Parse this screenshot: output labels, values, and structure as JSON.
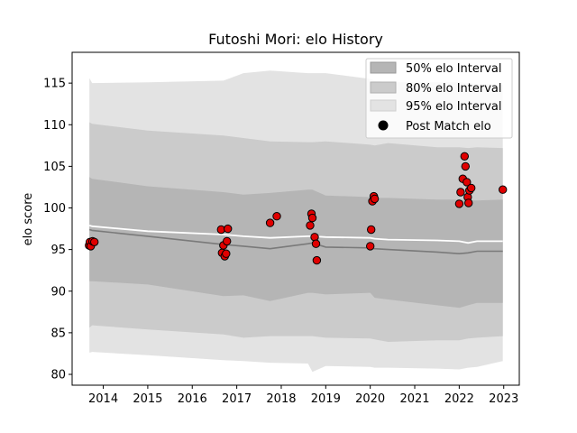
{
  "chart_data": {
    "type": "line",
    "title": "Futoshi Mori: elo History",
    "xlabel": "",
    "ylabel": "elo score",
    "xlim": [
      2013.3,
      2023.35
    ],
    "ylim": [
      78.7,
      118.7
    ],
    "x_ticks": [
      2014,
      2015,
      2016,
      2017,
      2018,
      2019,
      2020,
      2021,
      2022,
      2023
    ],
    "y_ticks": [
      80,
      85,
      90,
      95,
      100,
      105,
      110,
      115
    ],
    "grid": false,
    "legend_placement": "top-right",
    "legend": [
      {
        "label": "50% elo Interval",
        "color": "#b5b5b5"
      },
      {
        "label": "80% elo Interval",
        "color": "#cbcbcb"
      },
      {
        "label": "95% elo Interval",
        "color": "#e3e3e3"
      },
      {
        "label": "Post Match elo",
        "color": "#000000"
      }
    ],
    "band_x": [
      2013.69,
      2013.75,
      2015.0,
      2016.7,
      2017.15,
      2017.75,
      2018.6,
      2018.7,
      2019.0,
      2020.0,
      2020.1,
      2020.4,
      2021.5,
      2022.0,
      2022.2,
      2022.4,
      2022.98
    ],
    "mean_line": [
      97.4,
      97.3,
      96.6,
      95.6,
      95.4,
      95.1,
      95.7,
      95.8,
      95.3,
      95.2,
      95.1,
      95.0,
      94.7,
      94.5,
      94.6,
      94.8,
      94.8
    ],
    "prior_line": [
      97.9,
      97.8,
      97.2,
      96.8,
      96.6,
      96.4,
      96.6,
      96.6,
      96.5,
      96.4,
      96.3,
      96.2,
      96.1,
      96.0,
      95.8,
      96.0,
      96.0
    ],
    "band_50": {
      "lower": [
        91.2,
        91.2,
        90.8,
        89.4,
        89.5,
        88.8,
        89.8,
        89.8,
        89.6,
        89.8,
        89.2,
        89.0,
        88.3,
        88.0,
        88.3,
        88.6,
        88.6
      ],
      "upper": [
        103.7,
        103.5,
        102.6,
        101.9,
        101.6,
        101.8,
        102.2,
        102.2,
        101.5,
        101.3,
        101.2,
        101.2,
        101.0,
        101.0,
        100.9,
        100.9,
        101.0
      ]
    },
    "band_80": {
      "lower": [
        85.6,
        85.9,
        85.4,
        84.8,
        84.4,
        84.6,
        84.6,
        84.6,
        84.4,
        84.3,
        84.2,
        83.9,
        84.1,
        84.1,
        84.3,
        84.4,
        84.6
      ],
      "upper": [
        110.3,
        110.1,
        109.3,
        108.7,
        108.4,
        108.0,
        107.9,
        107.9,
        108.0,
        107.6,
        107.5,
        107.8,
        107.3,
        107.3,
        107.2,
        107.3,
        107.2
      ]
    },
    "band_95": {
      "lower": [
        82.6,
        82.7,
        82.3,
        81.7,
        81.6,
        81.4,
        81.3,
        80.3,
        81.0,
        80.9,
        80.8,
        80.8,
        80.7,
        80.6,
        80.8,
        80.9,
        81.6
      ],
      "upper": [
        115.6,
        115.0,
        115.1,
        115.3,
        116.2,
        116.5,
        116.2,
        116.2,
        116.2,
        115.5,
        115.3,
        115.1,
        115.1,
        115.1,
        115.0,
        114.9,
        114.8
      ]
    },
    "points": [
      {
        "x": 2013.68,
        "y": 95.5
      },
      {
        "x": 2013.7,
        "y": 95.9
      },
      {
        "x": 2013.72,
        "y": 95.4
      },
      {
        "x": 2013.76,
        "y": 96.0
      },
      {
        "x": 2013.8,
        "y": 95.9
      },
      {
        "x": 2016.65,
        "y": 97.4
      },
      {
        "x": 2016.67,
        "y": 94.6
      },
      {
        "x": 2016.7,
        "y": 95.5
      },
      {
        "x": 2016.73,
        "y": 94.2
      },
      {
        "x": 2016.76,
        "y": 94.5
      },
      {
        "x": 2016.78,
        "y": 96.0
      },
      {
        "x": 2016.8,
        "y": 97.5
      },
      {
        "x": 2017.75,
        "y": 98.2
      },
      {
        "x": 2017.9,
        "y": 99.0
      },
      {
        "x": 2018.65,
        "y": 97.9
      },
      {
        "x": 2018.68,
        "y": 99.3
      },
      {
        "x": 2018.7,
        "y": 98.8
      },
      {
        "x": 2018.75,
        "y": 96.5
      },
      {
        "x": 2018.78,
        "y": 95.7
      },
      {
        "x": 2018.8,
        "y": 93.7
      },
      {
        "x": 2020.0,
        "y": 95.4
      },
      {
        "x": 2020.02,
        "y": 97.4
      },
      {
        "x": 2020.05,
        "y": 100.8
      },
      {
        "x": 2020.08,
        "y": 101.4
      },
      {
        "x": 2020.1,
        "y": 101.1
      },
      {
        "x": 2022.0,
        "y": 100.5
      },
      {
        "x": 2022.03,
        "y": 101.9
      },
      {
        "x": 2022.08,
        "y": 103.5
      },
      {
        "x": 2022.12,
        "y": 106.2
      },
      {
        "x": 2022.14,
        "y": 105.0
      },
      {
        "x": 2022.17,
        "y": 103.1
      },
      {
        "x": 2022.19,
        "y": 101.3
      },
      {
        "x": 2022.21,
        "y": 100.6
      },
      {
        "x": 2022.23,
        "y": 102.1
      },
      {
        "x": 2022.27,
        "y": 102.4
      },
      {
        "x": 2022.98,
        "y": 102.2
      }
    ]
  }
}
